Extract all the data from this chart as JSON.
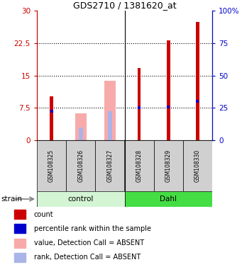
{
  "title": "GDS2710 / 1381620_at",
  "samples": [
    "GSM108325",
    "GSM108326",
    "GSM108327",
    "GSM108328",
    "GSM108329",
    "GSM108330"
  ],
  "red_bars": [
    10.2,
    0.0,
    0.0,
    16.7,
    23.2,
    27.5
  ],
  "pink_bars": [
    0.0,
    6.2,
    13.8,
    0.0,
    0.0,
    0.0
  ],
  "blue_rank_pct": [
    22.5,
    0.0,
    0.0,
    25.0,
    25.5,
    30.0
  ],
  "lightblue_bars_pct": [
    0.0,
    10.0,
    22.5,
    0.0,
    0.0,
    0.0
  ],
  "ylim_left": [
    0,
    30
  ],
  "ylim_right": [
    0,
    100
  ],
  "yticks_left": [
    0,
    7.5,
    15,
    22.5,
    30
  ],
  "ytick_labels_left": [
    "0",
    "7.5",
    "15",
    "22.5",
    "30"
  ],
  "yticks_right": [
    0,
    25,
    50,
    75,
    100
  ],
  "ytick_labels_right": [
    "0",
    "25",
    "50",
    "75",
    "100%"
  ],
  "left_axis_color": "#cc0000",
  "right_axis_color": "#0000cc",
  "red_color": "#cc0000",
  "pink_color": "#f8aaaa",
  "blue_color": "#0000cc",
  "lightblue_color": "#aab4e8",
  "sample_bg": "#d0d0d0",
  "control_color": "#d4f5d4",
  "dahl_color": "#44dd44",
  "legend_items": [
    {
      "color": "#cc0000",
      "label": "count"
    },
    {
      "color": "#0000cc",
      "label": "percentile rank within the sample"
    },
    {
      "color": "#f8aaaa",
      "label": "value, Detection Call = ABSENT"
    },
    {
      "color": "#aab4e8",
      "label": "rank, Detection Call = ABSENT"
    }
  ]
}
